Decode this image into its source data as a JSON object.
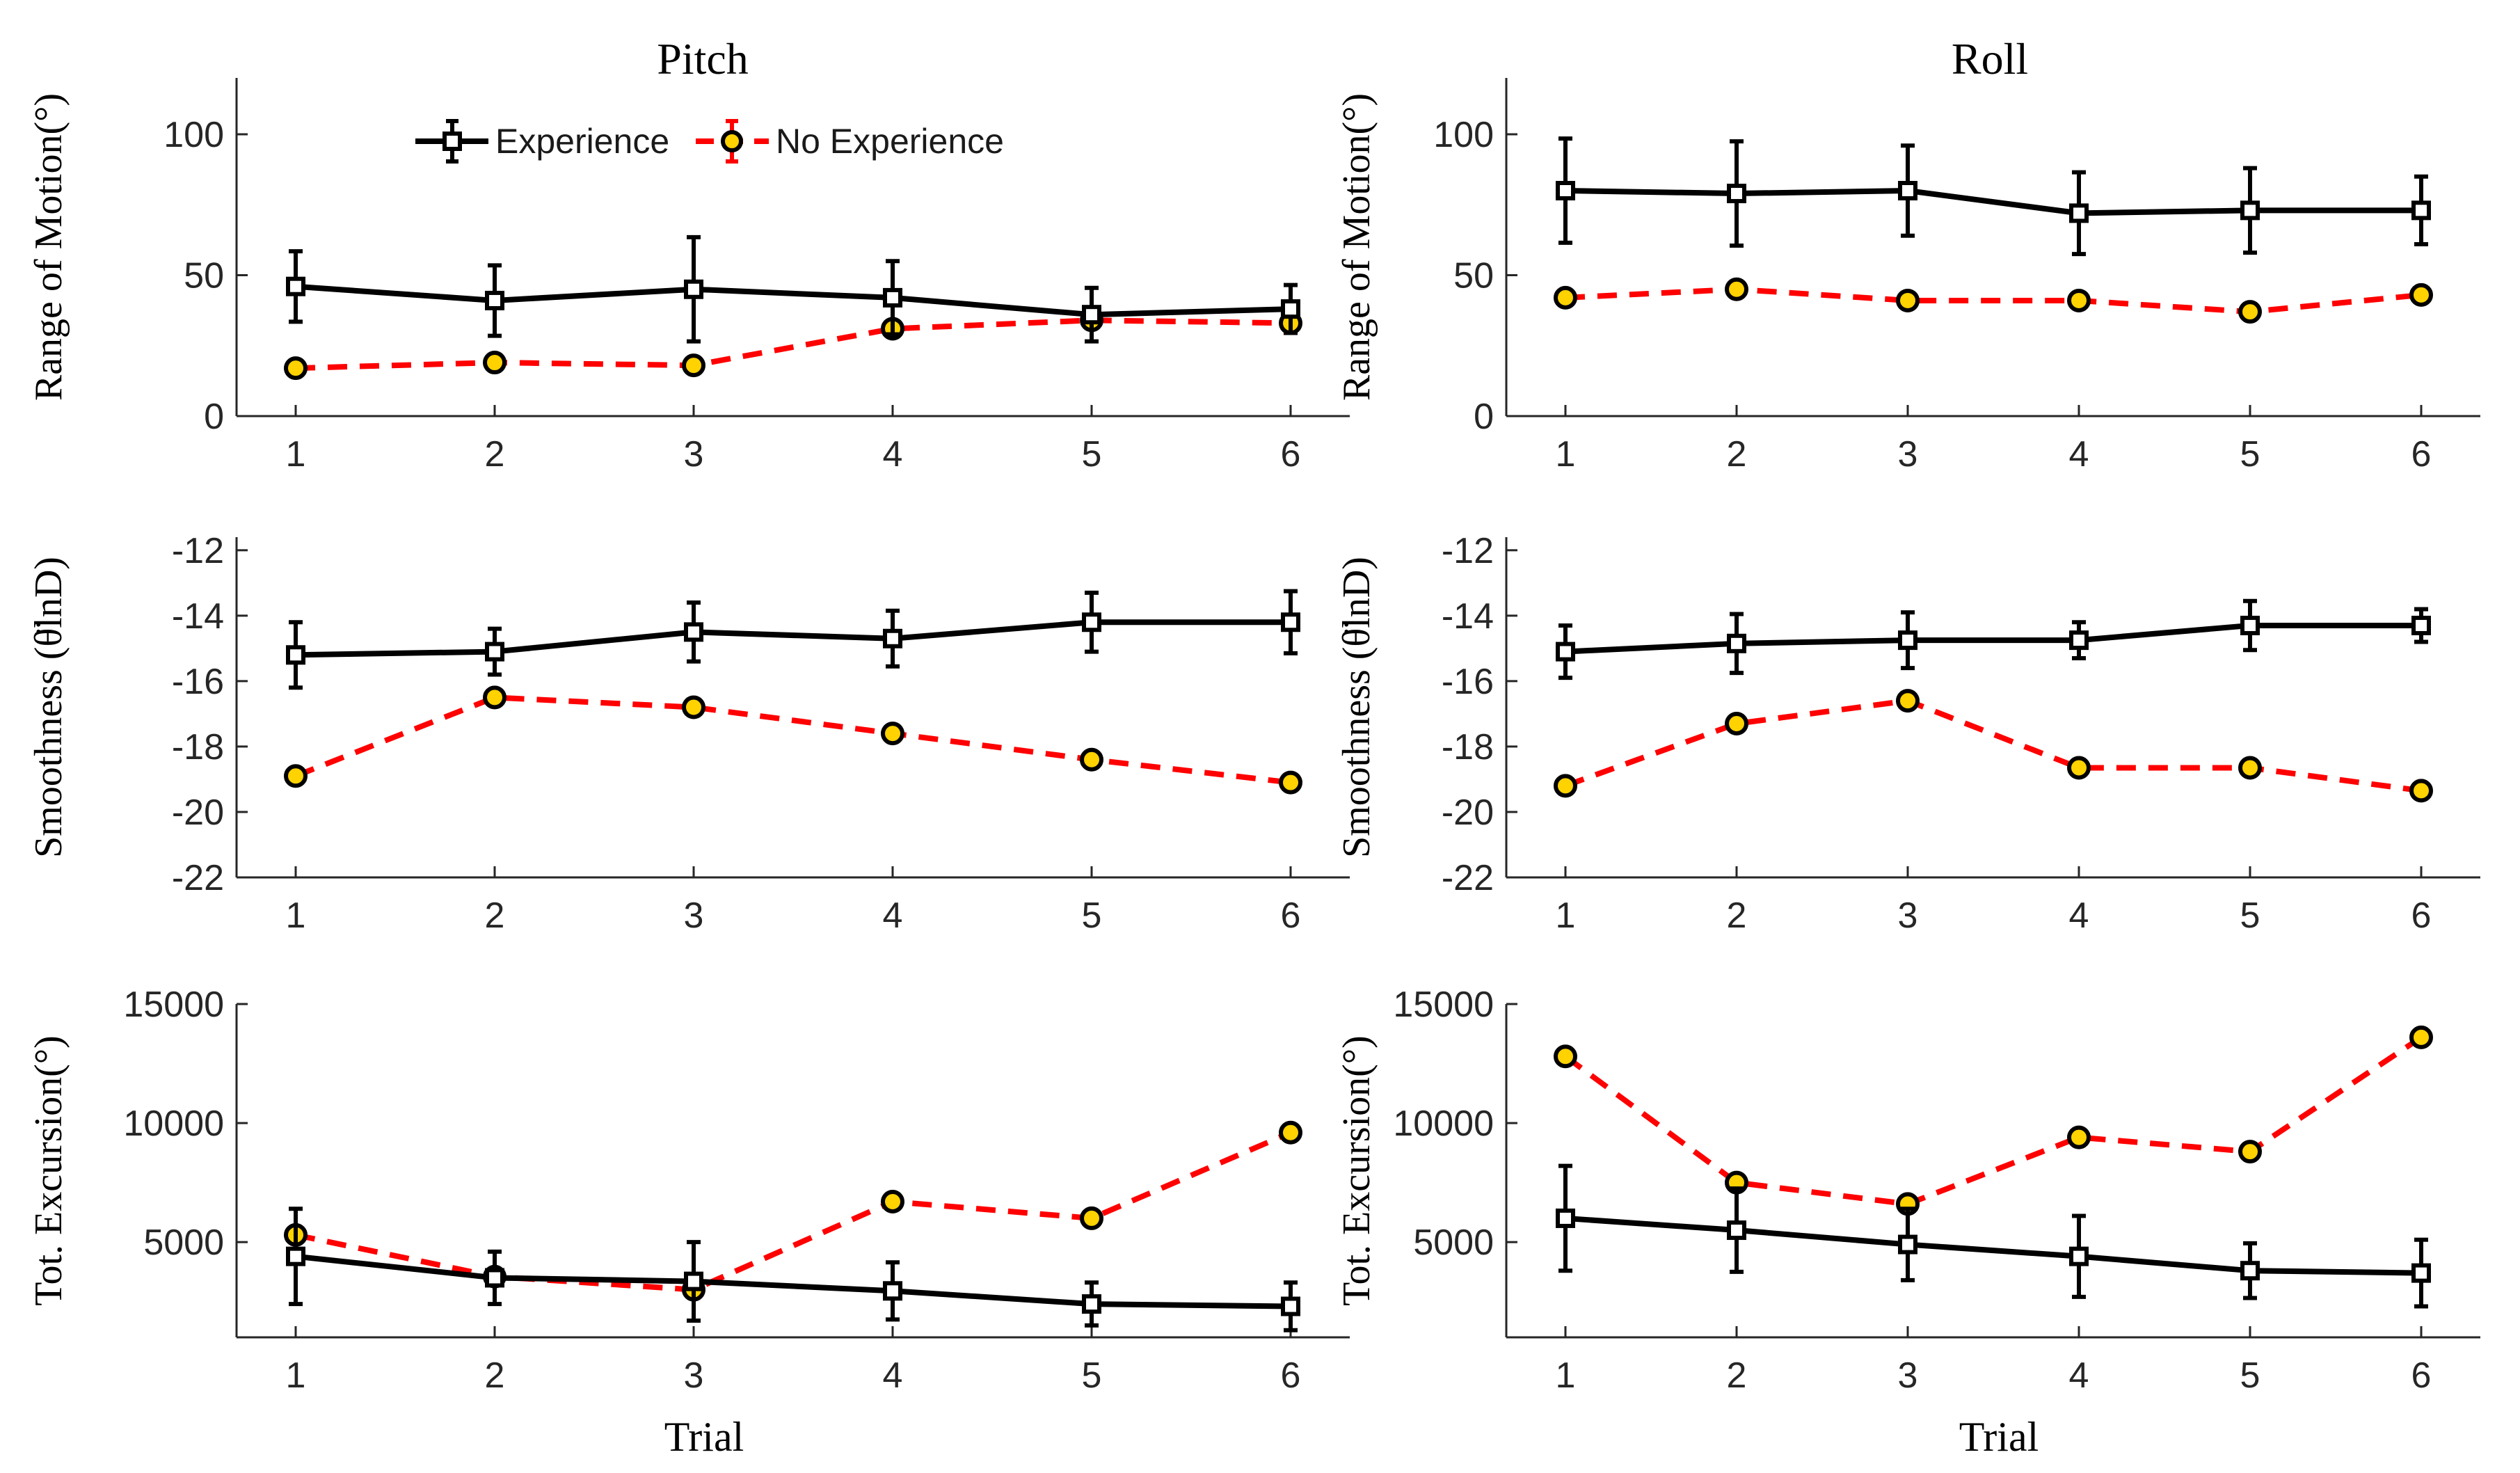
{
  "figure": {
    "columns": [
      {
        "title": "Pitch"
      },
      {
        "title": "Roll"
      }
    ],
    "xlabel": "Trial",
    "legend": {
      "placement": "top-center of Pitch range-of-motion panel",
      "entries": [
        {
          "name": "Experience",
          "color": "#000000",
          "style": "solid",
          "marker": "square"
        },
        {
          "name": "No Experience",
          "color": "#ff0000",
          "style": "dashed",
          "marker": "circle",
          "marker_fill": "#ffd200"
        }
      ]
    },
    "colors": {
      "experience": "#000000",
      "no_experience": "#ff0000",
      "marker_fill": "#ffd200"
    }
  },
  "chart_data": [
    {
      "type": "line",
      "title": "Pitch",
      "ylabel": "Range of Motion(°)",
      "xlabel": "",
      "x": [
        1,
        2,
        3,
        4,
        5,
        6
      ],
      "xticklabels": [
        "1",
        "2",
        "3",
        "4",
        "5",
        "6"
      ],
      "ylim": [
        0,
        120
      ],
      "yticks": [
        0,
        50,
        100
      ],
      "yticklabels": [
        "0",
        "50",
        "100"
      ],
      "series": [
        {
          "name": "Experience",
          "values": [
            46,
            41,
            45,
            42,
            36,
            38
          ],
          "err": [
            12.5,
            12.5,
            18.5,
            13,
            9.5,
            8.5
          ]
        },
        {
          "name": "No Experience",
          "values": [
            17,
            19,
            18,
            31,
            34,
            33
          ],
          "err": [
            0,
            0,
            0,
            0,
            0,
            0
          ]
        }
      ]
    },
    {
      "type": "line",
      "title": "Roll",
      "ylabel": "Range of Motion(°)",
      "xlabel": "",
      "x": [
        1,
        2,
        3,
        4,
        5,
        6
      ],
      "xticklabels": [
        "1",
        "2",
        "3",
        "4",
        "5",
        "6"
      ],
      "ylim": [
        0,
        120
      ],
      "yticks": [
        0,
        50,
        100
      ],
      "yticklabels": [
        "0",
        "50",
        "100"
      ],
      "series": [
        {
          "name": "Experience",
          "values": [
            80,
            79,
            80,
            72,
            73,
            73
          ],
          "err": [
            18.5,
            18.5,
            16,
            14.5,
            15,
            12
          ]
        },
        {
          "name": "No Experience",
          "values": [
            42,
            45,
            41,
            41,
            37,
            43
          ],
          "err": [
            0,
            0,
            0,
            0,
            0,
            0
          ]
        }
      ]
    },
    {
      "type": "line",
      "title": "",
      "ylabel": "Smoothness (θ̈lnD)",
      "xlabel": "",
      "x": [
        1,
        2,
        3,
        4,
        5,
        6
      ],
      "xticklabels": [
        "1",
        "2",
        "3",
        "4",
        "5",
        "6"
      ],
      "ylim": [
        -22,
        -11.6
      ],
      "yticks": [
        -22,
        -20,
        -18,
        -16,
        -14,
        -12
      ],
      "yticklabels": [
        "-22",
        "-20",
        "-18",
        "-16",
        "-14",
        "-12"
      ],
      "series": [
        {
          "name": "Experience",
          "values": [
            -15.2,
            -15.1,
            -14.5,
            -14.7,
            -14.2,
            -14.2
          ],
          "err": [
            1.0,
            0.7,
            0.9,
            0.85,
            0.9,
            0.95
          ]
        },
        {
          "name": "No Experience",
          "values": [
            -18.9,
            -16.5,
            -16.8,
            -17.6,
            -18.4,
            -19.1
          ],
          "err": [
            0,
            0,
            0,
            0,
            0,
            0
          ]
        }
      ]
    },
    {
      "type": "line",
      "title": "",
      "ylabel": "Smoothness (θ̈lnD)",
      "xlabel": "",
      "x": [
        1,
        2,
        3,
        4,
        5,
        6
      ],
      "xticklabels": [
        "1",
        "2",
        "3",
        "4",
        "5",
        "6"
      ],
      "ylim": [
        -22,
        -11.6
      ],
      "yticks": [
        -22,
        -20,
        -18,
        -16,
        -14,
        -12
      ],
      "yticklabels": [
        "-22",
        "-20",
        "-18",
        "-16",
        "-14",
        "-12"
      ],
      "series": [
        {
          "name": "Experience",
          "values": [
            -15.1,
            -14.85,
            -14.75,
            -14.75,
            -14.3,
            -14.3
          ],
          "err": [
            0.8,
            0.9,
            0.85,
            0.55,
            0.75,
            0.5
          ]
        },
        {
          "name": "No Experience",
          "values": [
            -19.2,
            -17.3,
            -16.6,
            -18.65,
            -18.65,
            -19.35
          ],
          "err": [
            0,
            0,
            0,
            0,
            0,
            0
          ]
        }
      ]
    },
    {
      "type": "line",
      "title": "",
      "ylabel": "Tot. Excursion(°)",
      "xlabel": "Trial",
      "x": [
        1,
        2,
        3,
        4,
        5,
        6
      ],
      "xticklabels": [
        "1",
        "2",
        "3",
        "4",
        "5",
        "6"
      ],
      "ylim": [
        1000,
        15000
      ],
      "yticks": [
        5000,
        10000,
        15000
      ],
      "yticklabels": [
        "5000",
        "10000",
        "15000"
      ],
      "series": [
        {
          "name": "Experience",
          "values": [
            4400,
            3500,
            3350,
            2950,
            2400,
            2300
          ],
          "err": [
            2000,
            1100,
            1650,
            1200,
            900,
            1000
          ]
        },
        {
          "name": "No Experience",
          "values": [
            5300,
            3550,
            3000,
            6700,
            6000,
            9600
          ],
          "err": [
            0,
            0,
            0,
            0,
            0,
            0
          ]
        }
      ]
    },
    {
      "type": "line",
      "title": "",
      "ylabel": "Tot. Excursion(°)",
      "xlabel": "Trial",
      "x": [
        1,
        2,
        3,
        4,
        5,
        6
      ],
      "xticklabels": [
        "1",
        "2",
        "3",
        "4",
        "5",
        "6"
      ],
      "ylim": [
        1000,
        15000
      ],
      "yticks": [
        5000,
        10000,
        15000
      ],
      "yticklabels": [
        "5000",
        "10000",
        "15000"
      ],
      "series": [
        {
          "name": "Experience",
          "values": [
            6000,
            5500,
            4900,
            4400,
            3800,
            3700
          ],
          "err": [
            2200,
            1750,
            1500,
            1700,
            1150,
            1400
          ]
        },
        {
          "name": "No Experience",
          "values": [
            12800,
            7500,
            6600,
            9400,
            8800,
            13600
          ],
          "err": [
            0,
            0,
            0,
            0,
            0,
            0
          ]
        }
      ]
    }
  ]
}
